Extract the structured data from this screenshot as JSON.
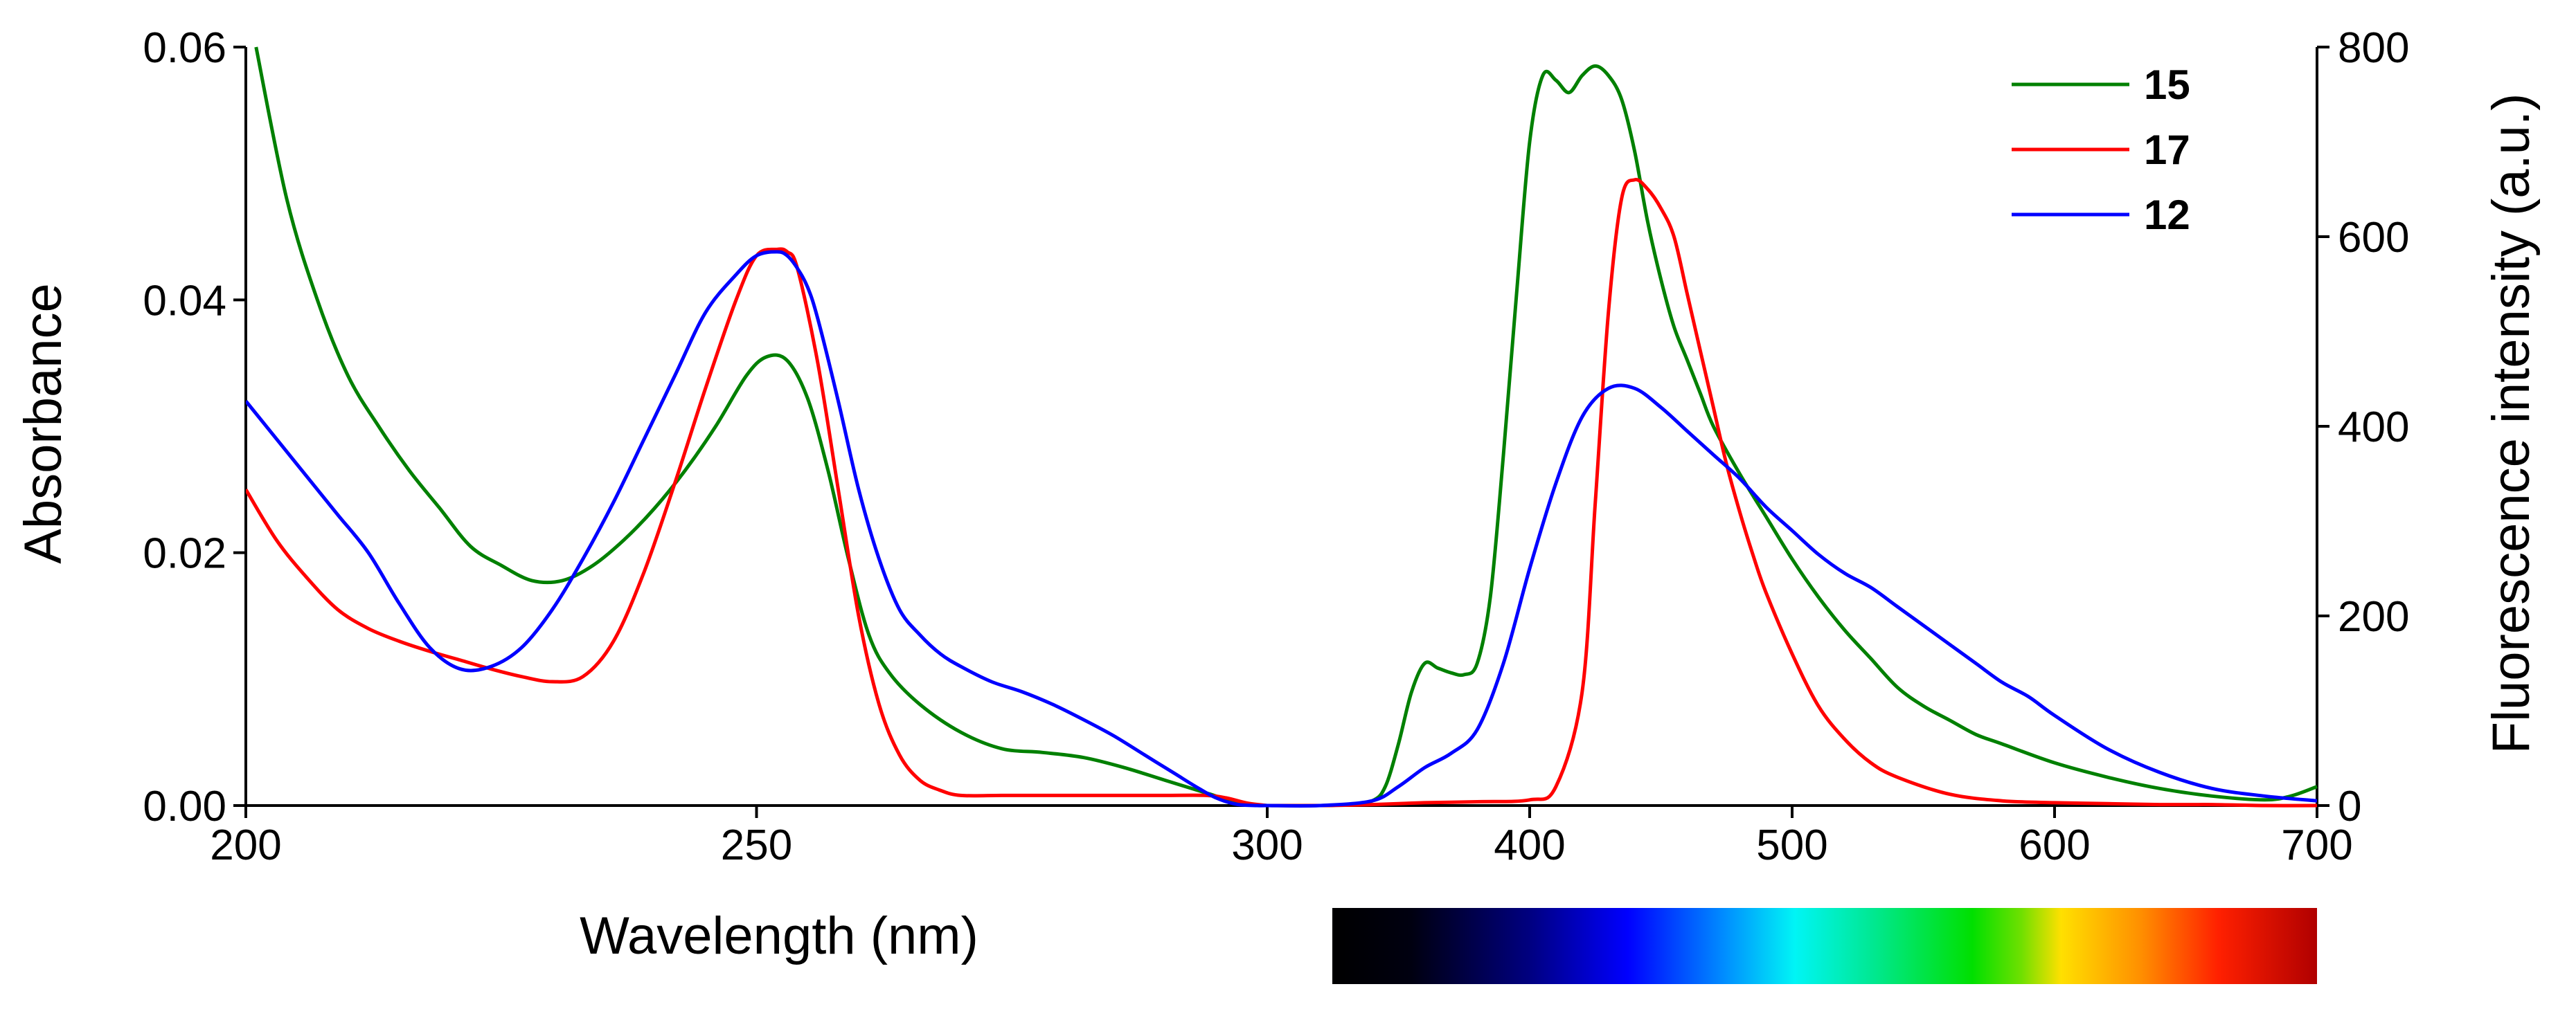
{
  "chart_data": {
    "type": "line",
    "title": "",
    "xlabel": "Wavelength (nm)",
    "ylabel_left": "Absorbance",
    "ylabel_right": "Fluorescence intensity (a.u.)",
    "grid": false,
    "legend_position": "top-right",
    "colors": {
      "15": "#008000",
      "17": "#ff0000",
      "12": "#0000ff"
    },
    "legend": [
      "15",
      "17",
      "12"
    ],
    "x_ticks": [
      "200",
      "250",
      "300",
      "400",
      "500",
      "600",
      "700"
    ],
    "y_left_ticks": [
      "0.00",
      "0.02",
      "0.04",
      "0.06"
    ],
    "y_right_ticks": [
      "0",
      "200",
      "400",
      "600",
      "800"
    ],
    "absorbance_panel": {
      "xlim": [
        200,
        300
      ],
      "ylim": [
        0,
        0.06
      ],
      "series": [
        {
          "name": "15",
          "x": [
            201,
            204,
            207,
            210,
            213,
            216,
            219,
            222,
            225,
            228,
            231,
            234,
            237,
            240,
            243,
            246,
            249,
            251,
            253,
            255,
            257,
            259,
            261,
            263,
            266,
            270,
            274,
            278,
            282,
            286,
            290,
            294,
            296,
            298,
            300
          ],
          "y": [
            0.06,
            0.048,
            0.04,
            0.034,
            0.03,
            0.0265,
            0.0235,
            0.0205,
            0.019,
            0.0178,
            0.0178,
            0.019,
            0.021,
            0.0235,
            0.0265,
            0.03,
            0.034,
            0.0355,
            0.0352,
            0.0322,
            0.0265,
            0.0195,
            0.0135,
            0.0105,
            0.008,
            0.0058,
            0.0045,
            0.0042,
            0.0038,
            0.003,
            0.002,
            0.001,
            0.0005,
            0.0001,
            0.0
          ]
        },
        {
          "name": "17",
          "x": [
            200,
            203,
            206,
            209,
            212,
            215,
            218,
            221,
            224,
            227,
            230,
            233,
            236,
            239,
            242,
            245,
            248,
            250,
            252,
            253,
            254,
            256,
            258,
            260,
            262,
            264,
            266,
            268,
            270,
            274,
            278,
            282,
            286,
            290,
            294,
            296,
            298,
            300
          ],
          "y": [
            0.025,
            0.021,
            0.018,
            0.0155,
            0.014,
            0.013,
            0.0122,
            0.0115,
            0.0108,
            0.0102,
            0.0098,
            0.0102,
            0.013,
            0.0185,
            0.0255,
            0.033,
            0.04,
            0.0435,
            0.044,
            0.0438,
            0.0425,
            0.035,
            0.025,
            0.015,
            0.008,
            0.004,
            0.002,
            0.0012,
            0.0008,
            0.0008,
            0.0008,
            0.0008,
            0.0008,
            0.0008,
            0.0008,
            0.0006,
            0.0002,
            0.0
          ]
        },
        {
          "name": "12",
          "x": [
            200,
            203,
            206,
            209,
            212,
            215,
            218,
            221,
            224,
            227,
            230,
            233,
            236,
            239,
            242,
            245,
            248,
            250,
            252,
            253,
            254,
            255,
            256,
            258,
            260,
            262,
            264,
            266,
            268,
            270,
            273,
            276,
            279,
            282,
            285,
            288,
            291,
            293,
            295,
            297,
            299,
            300
          ],
          "y": [
            0.032,
            0.029,
            0.026,
            0.023,
            0.02,
            0.016,
            0.0125,
            0.0108,
            0.011,
            0.0125,
            0.0155,
            0.0195,
            0.024,
            0.029,
            0.034,
            0.039,
            0.042,
            0.0435,
            0.0438,
            0.0435,
            0.0425,
            0.041,
            0.0385,
            0.032,
            0.025,
            0.0195,
            0.0155,
            0.0135,
            0.012,
            0.011,
            0.0098,
            0.009,
            0.008,
            0.0068,
            0.0055,
            0.004,
            0.0025,
            0.0015,
            0.0006,
            0.0001,
            0.0,
            0.0
          ]
        }
      ]
    },
    "fluorescence_panel": {
      "xlim": [
        300,
        700
      ],
      "ylim": [
        0,
        800
      ],
      "series": [
        {
          "name": "15",
          "x": [
            300,
            320,
            330,
            340,
            345,
            350,
            355,
            360,
            365,
            370,
            375,
            380,
            385,
            390,
            395,
            400,
            405,
            410,
            415,
            420,
            425,
            430,
            435,
            440,
            445,
            450,
            455,
            460,
            465,
            470,
            480,
            490,
            500,
            510,
            520,
            530,
            540,
            550,
            560,
            570,
            580,
            600,
            620,
            640,
            660,
            680,
            690,
            700
          ],
          "y": [
            0,
            0,
            1,
            5,
            20,
            65,
            120,
            150,
            145,
            140,
            138,
            150,
            220,
            370,
            540,
            700,
            770,
            765,
            752,
            770,
            780,
            770,
            745,
            690,
            615,
            555,
            505,
            470,
            435,
            400,
            350,
            305,
            260,
            220,
            185,
            155,
            125,
            105,
            90,
            75,
            65,
            45,
            30,
            18,
            10,
            6,
            10,
            20
          ]
        },
        {
          "name": "17",
          "x": [
            300,
            320,
            340,
            360,
            380,
            400,
            410,
            420,
            425,
            430,
            435,
            440,
            445,
            450,
            455,
            460,
            465,
            470,
            475,
            480,
            485,
            490,
            500,
            510,
            520,
            530,
            540,
            560,
            580,
            600,
            620,
            640,
            660,
            680,
            700
          ],
          "y": [
            0,
            0,
            1,
            3,
            4,
            6,
            20,
            120,
            320,
            520,
            640,
            660,
            650,
            630,
            600,
            540,
            480,
            420,
            360,
            310,
            265,
            225,
            160,
            105,
            70,
            45,
            30,
            12,
            5,
            3,
            2,
            1,
            1,
            0,
            0
          ]
        },
        {
          "name": "12",
          "x": [
            300,
            320,
            340,
            350,
            360,
            370,
            380,
            390,
            400,
            410,
            420,
            430,
            440,
            450,
            460,
            470,
            480,
            490,
            500,
            510,
            520,
            530,
            540,
            550,
            560,
            570,
            580,
            590,
            600,
            620,
            640,
            660,
            680,
            700
          ],
          "y": [
            0,
            0,
            5,
            20,
            40,
            55,
            80,
            150,
            250,
            340,
            410,
            440,
            440,
            420,
            395,
            370,
            345,
            315,
            290,
            265,
            245,
            230,
            210,
            190,
            170,
            150,
            130,
            115,
            95,
            60,
            35,
            18,
            10,
            5
          ]
        }
      ]
    }
  }
}
